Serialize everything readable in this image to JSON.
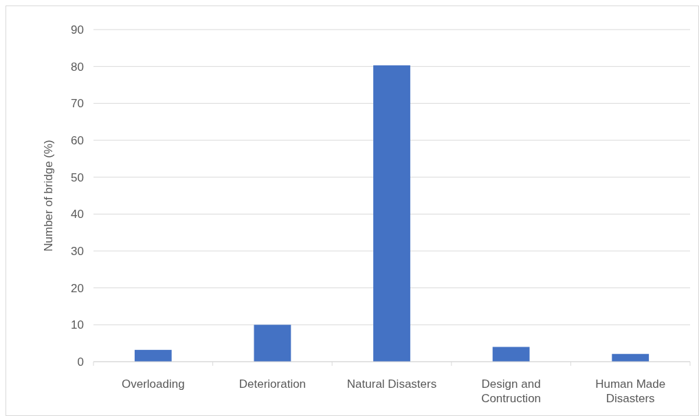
{
  "chart_data": {
    "type": "bar",
    "ylabel": "Number of bridge (%)",
    "categories": [
      "Overloading",
      "Deterioration",
      "Natural Disasters",
      "Design and Contruction",
      "Human Made Disasters"
    ],
    "values": [
      3.2,
      10,
      80.3,
      4,
      2.1
    ],
    "color": "#4472c4",
    "ylim": [
      0,
      90
    ],
    "yticks": [
      0,
      10,
      20,
      30,
      40,
      50,
      60,
      70,
      80,
      90
    ],
    "grid": "y"
  }
}
